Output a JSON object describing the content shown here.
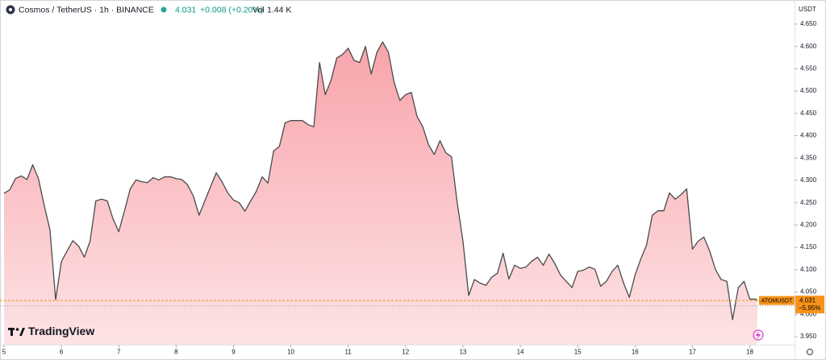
{
  "chart_data": {
    "type": "area",
    "header": {
      "symbol": "Cosmos / TetherUS · 1h · BINANCE",
      "change": "+0.008 (+0.20%)",
      "volume_label": "Vol",
      "volume": "1.44 K"
    },
    "currency": "USDT",
    "logo": "TradingView",
    "line_color": "#4a4a4a",
    "fill_top": "#f8a4aa",
    "fill_bottom": "#fde3e5",
    "x": [
      5.0,
      5.1,
      5.2,
      5.3,
      5.4,
      5.5,
      5.6,
      5.7,
      5.8,
      5.9,
      6.0,
      6.1,
      6.2,
      6.3,
      6.4,
      6.5,
      6.6,
      6.7,
      6.8,
      6.9,
      7.0,
      7.1,
      7.2,
      7.3,
      7.4,
      7.5,
      7.6,
      7.7,
      7.8,
      7.9,
      8.0,
      8.1,
      8.2,
      8.3,
      8.4,
      8.5,
      8.6,
      8.7,
      8.8,
      8.9,
      9.0,
      9.1,
      9.2,
      9.3,
      9.4,
      9.5,
      9.6,
      9.7,
      9.8,
      9.9,
      10.0,
      10.1,
      10.2,
      10.3,
      10.4,
      10.5,
      10.6,
      10.7,
      10.8,
      10.9,
      11.0,
      11.1,
      11.2,
      11.3,
      11.4,
      11.5,
      11.6,
      11.7,
      11.8,
      11.9,
      12.0,
      12.1,
      12.2,
      12.3,
      12.4,
      12.5,
      12.6,
      12.7,
      12.8,
      12.9,
      13.0,
      13.1,
      13.2,
      13.3,
      13.4,
      13.5,
      13.6,
      13.7,
      13.8,
      13.9,
      14.0,
      14.1,
      14.2,
      14.3,
      14.4,
      14.5,
      14.6,
      14.7,
      14.8,
      14.9,
      15.0,
      15.1,
      15.2,
      15.3,
      15.4,
      15.5,
      15.6,
      15.7,
      15.8,
      15.9,
      16.0,
      16.1,
      16.2,
      16.3,
      16.4,
      16.5,
      16.6,
      16.7,
      16.8,
      16.9,
      17.0,
      17.1,
      17.2,
      17.3,
      17.4,
      17.5,
      17.6,
      17.7,
      17.8,
      17.9,
      18.0,
      18.1,
      18.13
    ],
    "values": [
      4.271,
      4.279,
      4.304,
      4.31,
      4.302,
      4.335,
      4.304,
      4.244,
      4.19,
      4.033,
      4.118,
      4.142,
      4.165,
      4.153,
      4.128,
      4.164,
      4.254,
      4.258,
      4.254,
      4.214,
      4.185,
      4.232,
      4.281,
      4.301,
      4.297,
      4.295,
      4.306,
      4.301,
      4.308,
      4.308,
      4.304,
      4.302,
      4.29,
      4.265,
      4.222,
      4.254,
      4.286,
      4.317,
      4.297,
      4.272,
      4.256,
      4.25,
      4.231,
      4.254,
      4.276,
      4.308,
      4.294,
      4.366,
      4.376,
      4.429,
      4.434,
      4.434,
      4.434,
      4.425,
      4.42,
      4.564,
      4.492,
      4.524,
      4.574,
      4.582,
      4.596,
      4.569,
      4.564,
      4.6,
      4.538,
      4.587,
      4.61,
      4.587,
      4.52,
      4.479,
      4.492,
      4.497,
      4.443,
      4.42,
      4.38,
      4.358,
      4.389,
      4.362,
      4.353,
      4.25,
      4.164,
      4.042,
      4.078,
      4.07,
      4.065,
      4.083,
      4.092,
      4.137,
      4.079,
      4.11,
      4.103,
      4.106,
      4.119,
      4.128,
      4.11,
      4.135,
      4.114,
      4.088,
      4.074,
      4.06,
      4.096,
      4.099,
      4.106,
      4.101,
      4.063,
      4.074,
      4.096,
      4.11,
      4.07,
      4.038,
      4.088,
      4.124,
      4.155,
      4.222,
      4.232,
      4.232,
      4.272,
      4.258,
      4.268,
      4.281,
      4.146,
      4.164,
      4.173,
      4.142,
      4.101,
      4.078,
      4.074,
      3.988,
      4.06,
      4.074,
      4.034,
      4.034,
      4.031
    ],
    "xlim": [
      4.93,
      18.78
    ],
    "xticks": [
      5,
      6,
      7,
      8,
      9,
      10,
      11,
      12,
      13,
      14,
      15,
      16,
      17,
      18
    ],
    "ylim": [
      3.932,
      4.704
    ],
    "yticks": [
      {
        "value": 3.95,
        "label": "3.950"
      },
      {
        "value": 4.0,
        "label": "4.000"
      },
      {
        "value": 4.05,
        "label": "4.050"
      },
      {
        "value": 4.1,
        "label": "4.100"
      },
      {
        "value": 4.15,
        "label": "4.150"
      },
      {
        "value": 4.2,
        "label": "4.200"
      },
      {
        "value": 4.25,
        "label": "4.250"
      },
      {
        "value": 4.3,
        "label": "4.300"
      },
      {
        "value": 4.35,
        "label": "4.350"
      },
      {
        "value": 4.4,
        "label": "4.400"
      },
      {
        "value": 4.45,
        "label": "4.450"
      },
      {
        "value": 4.5,
        "label": "4.500"
      },
      {
        "value": 4.55,
        "label": "4.550"
      },
      {
        "value": 4.6,
        "label": "4.600"
      },
      {
        "value": 4.65,
        "label": "4.650"
      }
    ],
    "grid": false,
    "reference_line": 4.019,
    "price_tag": {
      "symbol": "ATOMUSDT",
      "value": 4.031,
      "change": "−5.95%",
      "color": "#f7931a"
    }
  }
}
